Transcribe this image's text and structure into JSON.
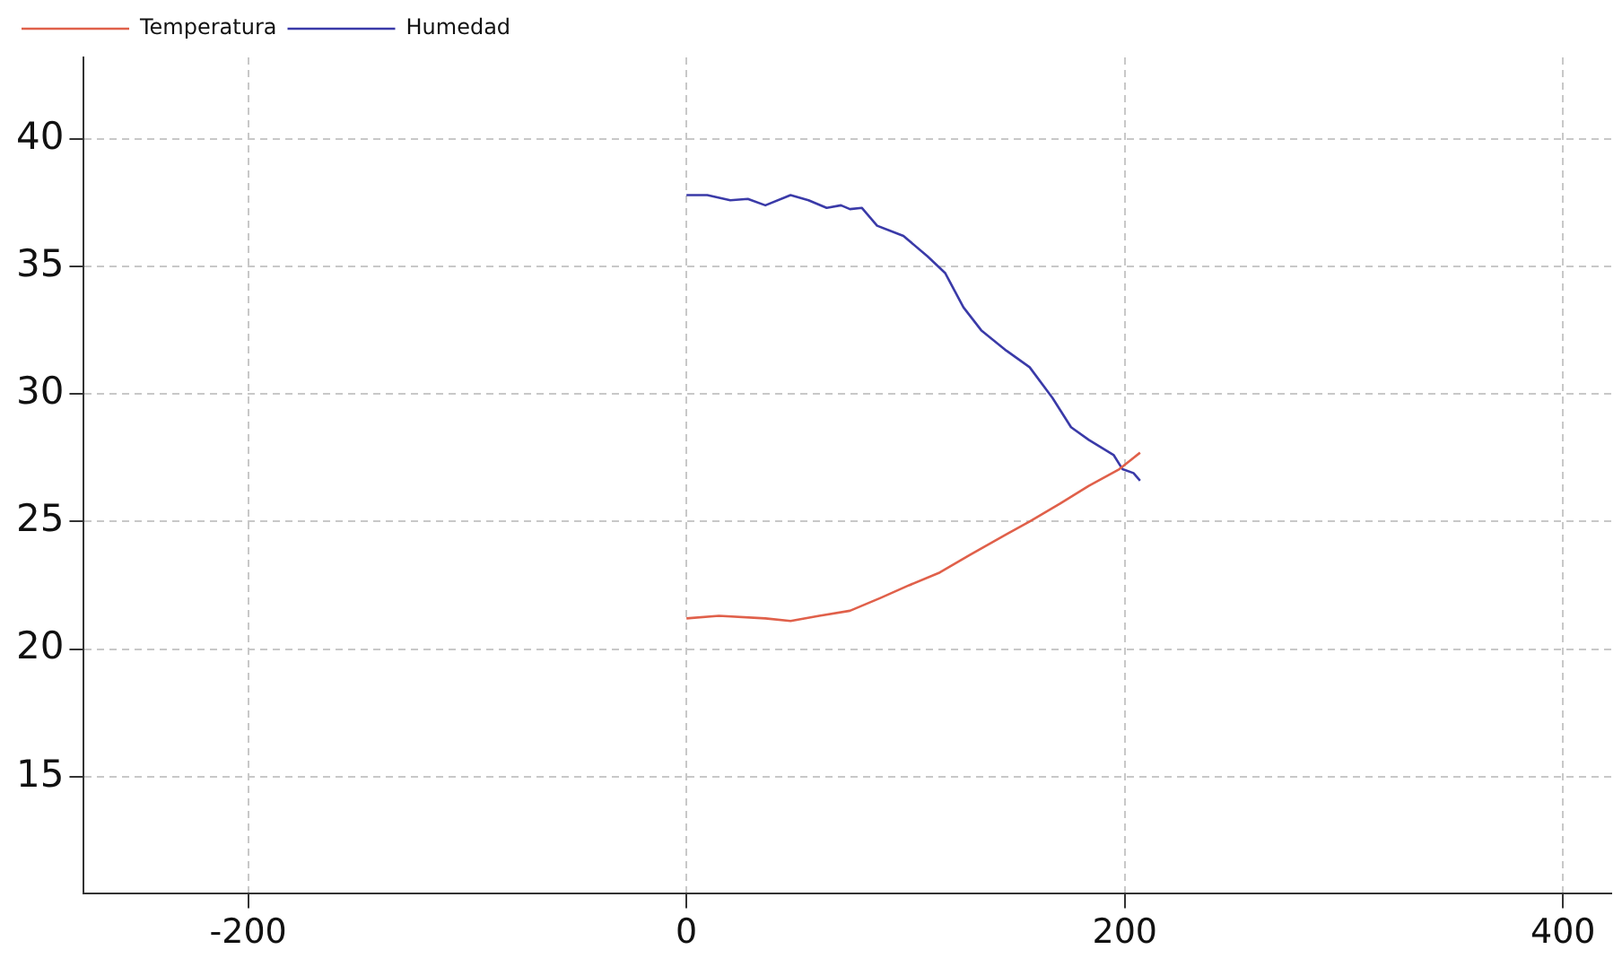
{
  "chart_data": {
    "type": "line",
    "xlim": [
      -275,
      422
    ],
    "ylim": [
      10.4,
      43.2
    ],
    "xticks": [
      -200,
      0,
      200,
      400
    ],
    "yticks": [
      15,
      20,
      25,
      30,
      35,
      40
    ],
    "grid": true,
    "legend": "top left",
    "marker": "none",
    "line_style": "solid",
    "series": [
      {
        "name": "Temperatura",
        "color": "#e0604a",
        "x": [
          0,
          14.8,
          36,
          47.5,
          60.6,
          74.6,
          88.5,
          101.6,
          115.6,
          129.5,
          146,
          156.6,
          170.5,
          183.6,
          197.5,
          207
        ],
        "values": [
          21.2,
          21.3,
          21.2,
          21.1,
          21.3,
          21.5,
          22.0,
          22.5,
          23.0,
          23.7,
          24.5,
          25.0,
          25.7,
          26.4,
          27.05,
          27.7
        ]
      },
      {
        "name": "Humedad",
        "color": "#3a3aa8",
        "x": [
          0,
          9.5,
          20,
          28,
          36,
          47.5,
          55.7,
          64,
          70.5,
          74.6,
          80,
          87,
          99,
          110,
          118,
          126.4,
          134.5,
          146,
          156.6,
          167,
          175.5,
          183.6,
          195,
          199,
          204,
          207
        ],
        "values": [
          37.8,
          37.8,
          37.6,
          37.65,
          37.4,
          37.8,
          37.6,
          37.3,
          37.4,
          37.25,
          37.3,
          36.6,
          36.2,
          35.4,
          34.75,
          33.4,
          32.5,
          31.7,
          31.05,
          29.85,
          28.7,
          28.2,
          27.6,
          27.05,
          26.9,
          26.6
        ]
      }
    ]
  }
}
